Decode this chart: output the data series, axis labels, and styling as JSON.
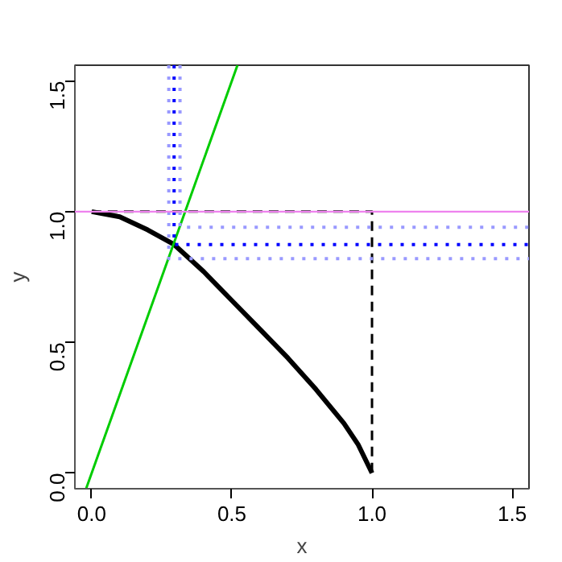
{
  "chart_data": {
    "type": "line",
    "xlabel": "x",
    "ylabel": "y",
    "xlim": [
      -0.06,
      1.56
    ],
    "ylim": [
      -0.06,
      1.56
    ],
    "xticks": [
      {
        "value": 0,
        "label": "0.0"
      },
      0.5,
      {
        "value": 1,
        "label": "1.0"
      },
      1.5
    ],
    "yticks": [
      {
        "value": 0,
        "label": "0.0"
      },
      0.5,
      {
        "value": 1,
        "label": "1.0"
      },
      1.5
    ],
    "grid": false,
    "marker": "none",
    "series": [
      {
        "color": "#000000",
        "line_style": "solid",
        "x": [
          0,
          0.1,
          0.2,
          0.294,
          0.4,
          0.5,
          0.6,
          0.7,
          0.8,
          0.9,
          0.95,
          1
        ],
        "values": [
          1,
          0.98,
          0.93,
          0.874,
          0.77,
          0.66,
          0.55,
          0.44,
          0.32,
          0.19,
          0.11,
          0
        ]
      },
      {
        "color": "#00cc00",
        "line_style": "solid",
        "x": [
          -0.02,
          0.52
        ],
        "values": [
          -0.06,
          1.56
        ]
      },
      {
        "color": "#000000",
        "line_style": "dashed",
        "x": [
          0,
          1,
          1
        ],
        "values": [
          1,
          1,
          0
        ]
      },
      {
        "color": "#0000ff",
        "line_style": "dotted",
        "x": [
          0.294,
          0.294,
          1.56
        ],
        "values": [
          1.56,
          0.874,
          0.874
        ]
      },
      {
        "color": "#9999ff",
        "line_style": "dotted",
        "x": [
          0.275,
          0.275,
          1.56
        ],
        "values": [
          1.56,
          0.82,
          0.82
        ]
      },
      {
        "color": "#9999ff",
        "line_style": "dotted",
        "x": [
          0.315,
          0.315,
          1.56
        ],
        "values": [
          1.56,
          0.94,
          0.94
        ]
      }
    ],
    "ref_lines": [
      {
        "axis": "y",
        "value": 1,
        "color": "#ee82ee",
        "line_style": "solid"
      }
    ]
  }
}
